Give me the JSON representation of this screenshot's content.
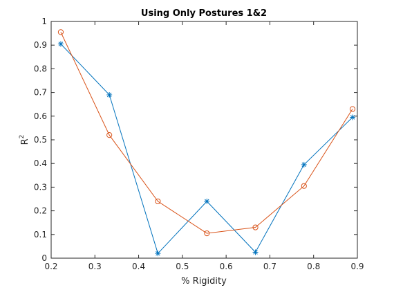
{
  "chart_data": {
    "type": "line",
    "title": "Using Only Postures 1&2",
    "xlabel": "% Rigidity",
    "ylabel": "R",
    "ylabel_superscript": "2",
    "xlim": [
      0.2,
      0.9
    ],
    "ylim": [
      0,
      1
    ],
    "xticks": [
      "0.2",
      "0.3",
      "0.4",
      "0.5",
      "0.6",
      "0.7",
      "0.8",
      "0.9"
    ],
    "yticks": [
      "0",
      "0.1",
      "0.2",
      "0.3",
      "0.4",
      "0.5",
      "0.6",
      "0.7",
      "0.8",
      "0.9",
      "1"
    ],
    "grid": false,
    "x": [
      0.222,
      0.333,
      0.444,
      0.556,
      0.667,
      0.778,
      0.889
    ],
    "series": [
      {
        "marker": "asterisk",
        "color": "#0072BD",
        "values": [
          0.905,
          0.69,
          0.02,
          0.24,
          0.025,
          0.395,
          0.595
        ]
      },
      {
        "marker": "circle",
        "color": "#D95319",
        "values": [
          0.955,
          0.52,
          0.24,
          0.105,
          0.13,
          0.305,
          0.63
        ]
      }
    ]
  }
}
